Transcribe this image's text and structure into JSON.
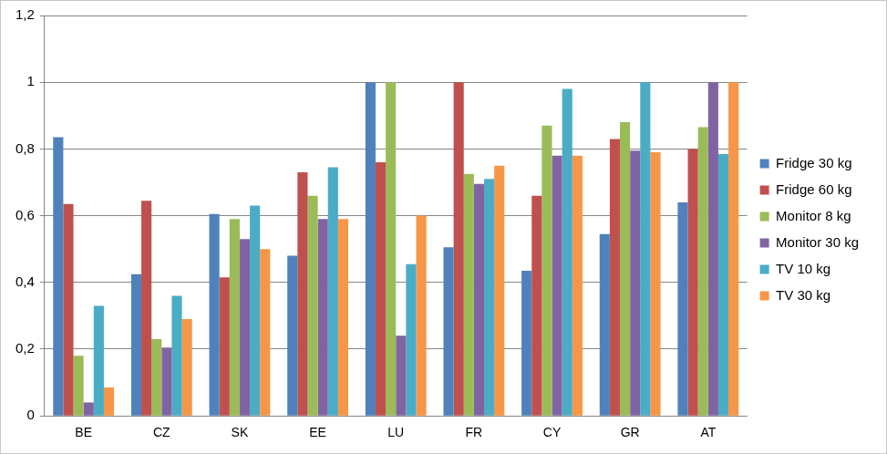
{
  "chart_data": {
    "type": "bar",
    "categories": [
      "BE",
      "CZ",
      "SK",
      "EE",
      "LU",
      "FR",
      "CY",
      "GR",
      "AT"
    ],
    "series": [
      {
        "name": "Fridge 30 kg",
        "color": "#4F81BD",
        "values": [
          0.835,
          0.425,
          0.605,
          0.48,
          1.0,
          0.505,
          0.435,
          0.545,
          0.64
        ]
      },
      {
        "name": "Fridge 60 kg",
        "color": "#C0504D",
        "values": [
          0.635,
          0.645,
          0.415,
          0.73,
          0.76,
          1.0,
          0.66,
          0.83,
          0.8
        ]
      },
      {
        "name": "Monitor 8 kg",
        "color": "#9BBB59",
        "values": [
          0.18,
          0.23,
          0.59,
          0.66,
          1.0,
          0.725,
          0.87,
          0.88,
          0.865
        ]
      },
      {
        "name": "Monitor 30 kg",
        "color": "#8064A2",
        "values": [
          0.04,
          0.205,
          0.53,
          0.59,
          0.24,
          0.695,
          0.78,
          0.795,
          1.0
        ]
      },
      {
        "name": "TV 10 kg",
        "color": "#4BACC6",
        "values": [
          0.33,
          0.36,
          0.63,
          0.745,
          0.455,
          0.71,
          0.98,
          1.0,
          0.785
        ]
      },
      {
        "name": "TV 30 kg",
        "color": "#F79646",
        "values": [
          0.085,
          0.29,
          0.5,
          0.59,
          0.6,
          0.75,
          0.78,
          0.79,
          1.0
        ]
      }
    ],
    "ylim": [
      0,
      1.2
    ],
    "yticks": [
      0,
      {
        "value": 0.2,
        "label": "0,2"
      },
      {
        "value": 0.4,
        "label": "0,4"
      },
      {
        "value": 0.6,
        "label": "0,6"
      },
      {
        "value": 0.8,
        "label": "0,8"
      },
      1,
      {
        "value": 1.2,
        "label": "1,2"
      }
    ],
    "grid": true,
    "legend": "right"
  }
}
